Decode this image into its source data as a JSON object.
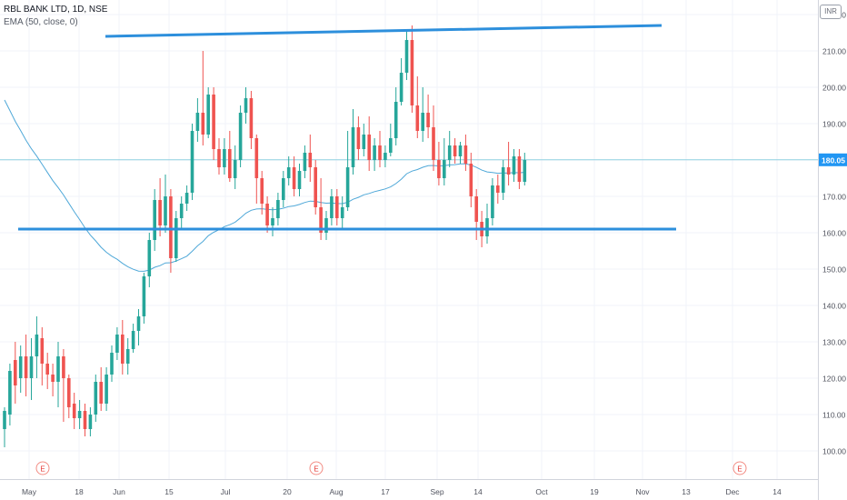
{
  "chart_data": {
    "type": "candlestick",
    "symbol_line": "RBL BANK LTD, 1D, NSE",
    "indicator_line": "EMA (50, close, 0)",
    "currency_badge": "INR",
    "last_price": "180.05",
    "ylim": [
      92,
      224
    ],
    "y_ticks": [
      "100.00",
      "110.00",
      "120.00",
      "130.00",
      "140.00",
      "150.00",
      "160.00",
      "170.00",
      "180.00",
      "190.00",
      "200.00",
      "210.00",
      "220.00"
    ],
    "x_ticks": [
      "May",
      "18",
      "Jun",
      "15",
      "Jul",
      "20",
      "Aug",
      "17",
      "Sep",
      "14",
      "Oct",
      "19",
      "Nov",
      "13",
      "Dec",
      "14"
    ],
    "earnings_markers": [
      "E",
      "E",
      "E"
    ],
    "colors": {
      "up": "#26a69a",
      "down": "#ef5350",
      "ema": "#4fa8d8",
      "trendline": "#2d8fdc",
      "price_line": "#8fd0e0",
      "badge": "#2196f3"
    },
    "candles": [
      [
        106,
        111,
        101,
        112
      ],
      [
        110,
        122,
        107,
        124
      ],
      [
        125,
        118,
        113,
        130
      ],
      [
        120,
        126,
        116,
        129
      ],
      [
        126,
        120,
        115,
        132
      ],
      [
        120,
        126,
        114,
        131
      ],
      [
        126,
        132,
        120,
        137
      ],
      [
        131,
        124,
        118,
        134
      ],
      [
        124,
        121,
        117,
        127
      ],
      [
        121,
        119,
        115,
        124
      ],
      [
        119,
        126,
        112,
        130
      ],
      [
        126,
        120,
        108,
        128
      ],
      [
        120,
        112,
        109,
        121
      ],
      [
        113,
        109,
        106,
        116
      ],
      [
        109,
        111,
        106,
        114
      ],
      [
        111,
        106,
        104,
        113
      ],
      [
        106,
        110,
        104,
        112
      ],
      [
        110,
        119,
        108,
        121
      ],
      [
        119,
        113,
        111,
        123
      ],
      [
        113,
        121,
        111,
        123
      ],
      [
        121,
        127,
        119,
        129
      ],
      [
        127,
        132,
        125,
        134
      ],
      [
        132,
        124,
        121,
        136
      ],
      [
        124,
        128,
        121,
        131
      ],
      [
        128,
        133,
        127,
        135
      ],
      [
        133,
        137,
        129,
        139
      ],
      [
        137,
        148,
        135,
        149
      ],
      [
        148,
        158,
        145,
        160
      ],
      [
        158,
        169,
        155,
        172
      ],
      [
        169,
        162,
        159,
        175
      ],
      [
        162,
        170,
        160,
        176
      ],
      [
        170,
        153,
        149,
        172
      ],
      [
        153,
        164,
        152,
        166
      ],
      [
        164,
        168,
        161,
        170
      ],
      [
        168,
        171,
        166,
        173
      ],
      [
        171,
        188,
        169,
        190
      ],
      [
        188,
        193,
        185,
        197
      ],
      [
        193,
        187,
        184,
        210
      ],
      [
        187,
        198,
        186,
        200
      ],
      [
        198,
        183,
        180,
        200
      ],
      [
        183,
        178,
        176,
        186
      ],
      [
        178,
        183,
        176,
        186
      ],
      [
        183,
        175,
        174,
        188
      ],
      [
        175,
        180,
        172,
        184
      ],
      [
        180,
        193,
        178,
        195
      ],
      [
        193,
        197,
        190,
        200
      ],
      [
        197,
        186,
        183,
        199
      ],
      [
        186,
        175,
        168,
        187
      ],
      [
        175,
        168,
        165,
        177
      ],
      [
        168,
        162,
        160,
        170
      ],
      [
        162,
        164,
        159,
        167
      ],
      [
        164,
        169,
        162,
        171
      ],
      [
        169,
        175,
        167,
        177
      ],
      [
        175,
        178,
        173,
        181
      ],
      [
        178,
        172,
        170,
        181
      ],
      [
        172,
        177,
        170,
        179
      ],
      [
        177,
        182,
        175,
        184
      ],
      [
        182,
        178,
        174,
        187
      ],
      [
        178,
        167,
        165,
        180
      ],
      [
        167,
        160,
        158,
        175
      ],
      [
        160,
        164,
        158,
        166
      ],
      [
        164,
        170,
        162,
        172
      ],
      [
        170,
        164,
        162,
        172
      ],
      [
        164,
        167,
        161,
        170
      ],
      [
        167,
        178,
        166,
        188
      ],
      [
        178,
        189,
        176,
        194
      ],
      [
        189,
        183,
        180,
        192
      ],
      [
        183,
        187,
        181,
        190
      ],
      [
        187,
        180,
        177,
        192
      ],
      [
        180,
        184,
        177,
        186
      ],
      [
        184,
        180,
        178,
        188
      ],
      [
        180,
        182,
        178,
        184
      ],
      [
        182,
        186,
        181,
        190
      ],
      [
        186,
        196,
        184,
        200
      ],
      [
        196,
        204,
        195,
        208
      ],
      [
        204,
        213,
        202,
        216
      ],
      [
        213,
        195,
        193,
        217
      ],
      [
        195,
        188,
        186,
        203
      ],
      [
        188,
        193,
        185,
        200
      ],
      [
        193,
        189,
        186,
        198
      ],
      [
        189,
        180,
        177,
        195
      ],
      [
        180,
        175,
        173,
        185
      ],
      [
        175,
        180,
        173,
        186
      ],
      [
        180,
        184,
        178,
        188
      ],
      [
        184,
        181,
        179,
        186
      ],
      [
        181,
        184,
        179,
        185
      ],
      [
        184,
        179,
        177,
        187
      ],
      [
        179,
        170,
        167,
        182
      ],
      [
        170,
        163,
        158,
        172
      ],
      [
        163,
        159,
        156,
        166
      ],
      [
        159,
        164,
        157,
        168
      ],
      [
        164,
        173,
        162,
        175
      ],
      [
        173,
        171,
        168,
        176
      ],
      [
        171,
        178,
        169,
        180
      ],
      [
        178,
        176,
        173,
        185
      ],
      [
        176,
        181,
        174,
        183
      ],
      [
        181,
        174,
        172,
        183
      ],
      [
        174,
        180,
        173,
        182
      ]
    ]
  }
}
